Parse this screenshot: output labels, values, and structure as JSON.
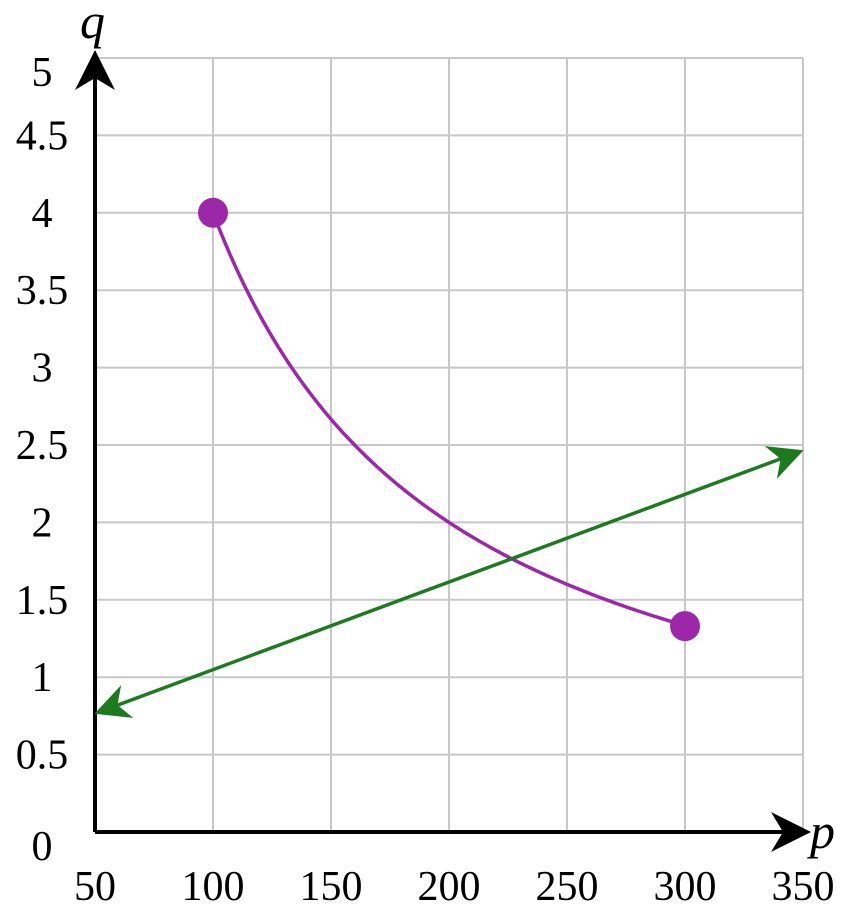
{
  "chart_data": {
    "type": "line",
    "xlabel": "p",
    "ylabel": "q",
    "xlim": [
      50,
      350
    ],
    "ylim": [
      0,
      5
    ],
    "grid": true,
    "x_ticks": [
      50,
      100,
      150,
      200,
      250,
      300,
      350
    ],
    "y_ticks": [
      0,
      0.5,
      1,
      1.5,
      2,
      2.5,
      3,
      3.5,
      4,
      4.5,
      5
    ],
    "x_tick_labels": [
      "50",
      "100",
      "150",
      "200",
      "250",
      "300",
      "350"
    ],
    "y_tick_labels": [
      "0",
      "0.5",
      "1",
      "1.5",
      "2",
      "2.5",
      "3",
      "3.5",
      "4",
      "4.5",
      "5"
    ],
    "series": [
      {
        "kind": "curve",
        "color": "#9c27a8",
        "x": [
          100,
          125,
          150,
          175,
          200,
          225,
          250,
          275,
          300
        ],
        "y": [
          4.0,
          3.2,
          2.67,
          2.29,
          2.0,
          1.78,
          1.6,
          1.45,
          1.33
        ],
        "endpoints": [
          [
            100,
            4.0
          ],
          [
            300,
            1.33
          ]
        ],
        "endpoint_style": "closed-dot"
      },
      {
        "kind": "line",
        "color": "#1e7a1e",
        "x": [
          50,
          350
        ],
        "y": [
          0.78,
          2.45
        ],
        "arrows": "both"
      }
    ]
  }
}
